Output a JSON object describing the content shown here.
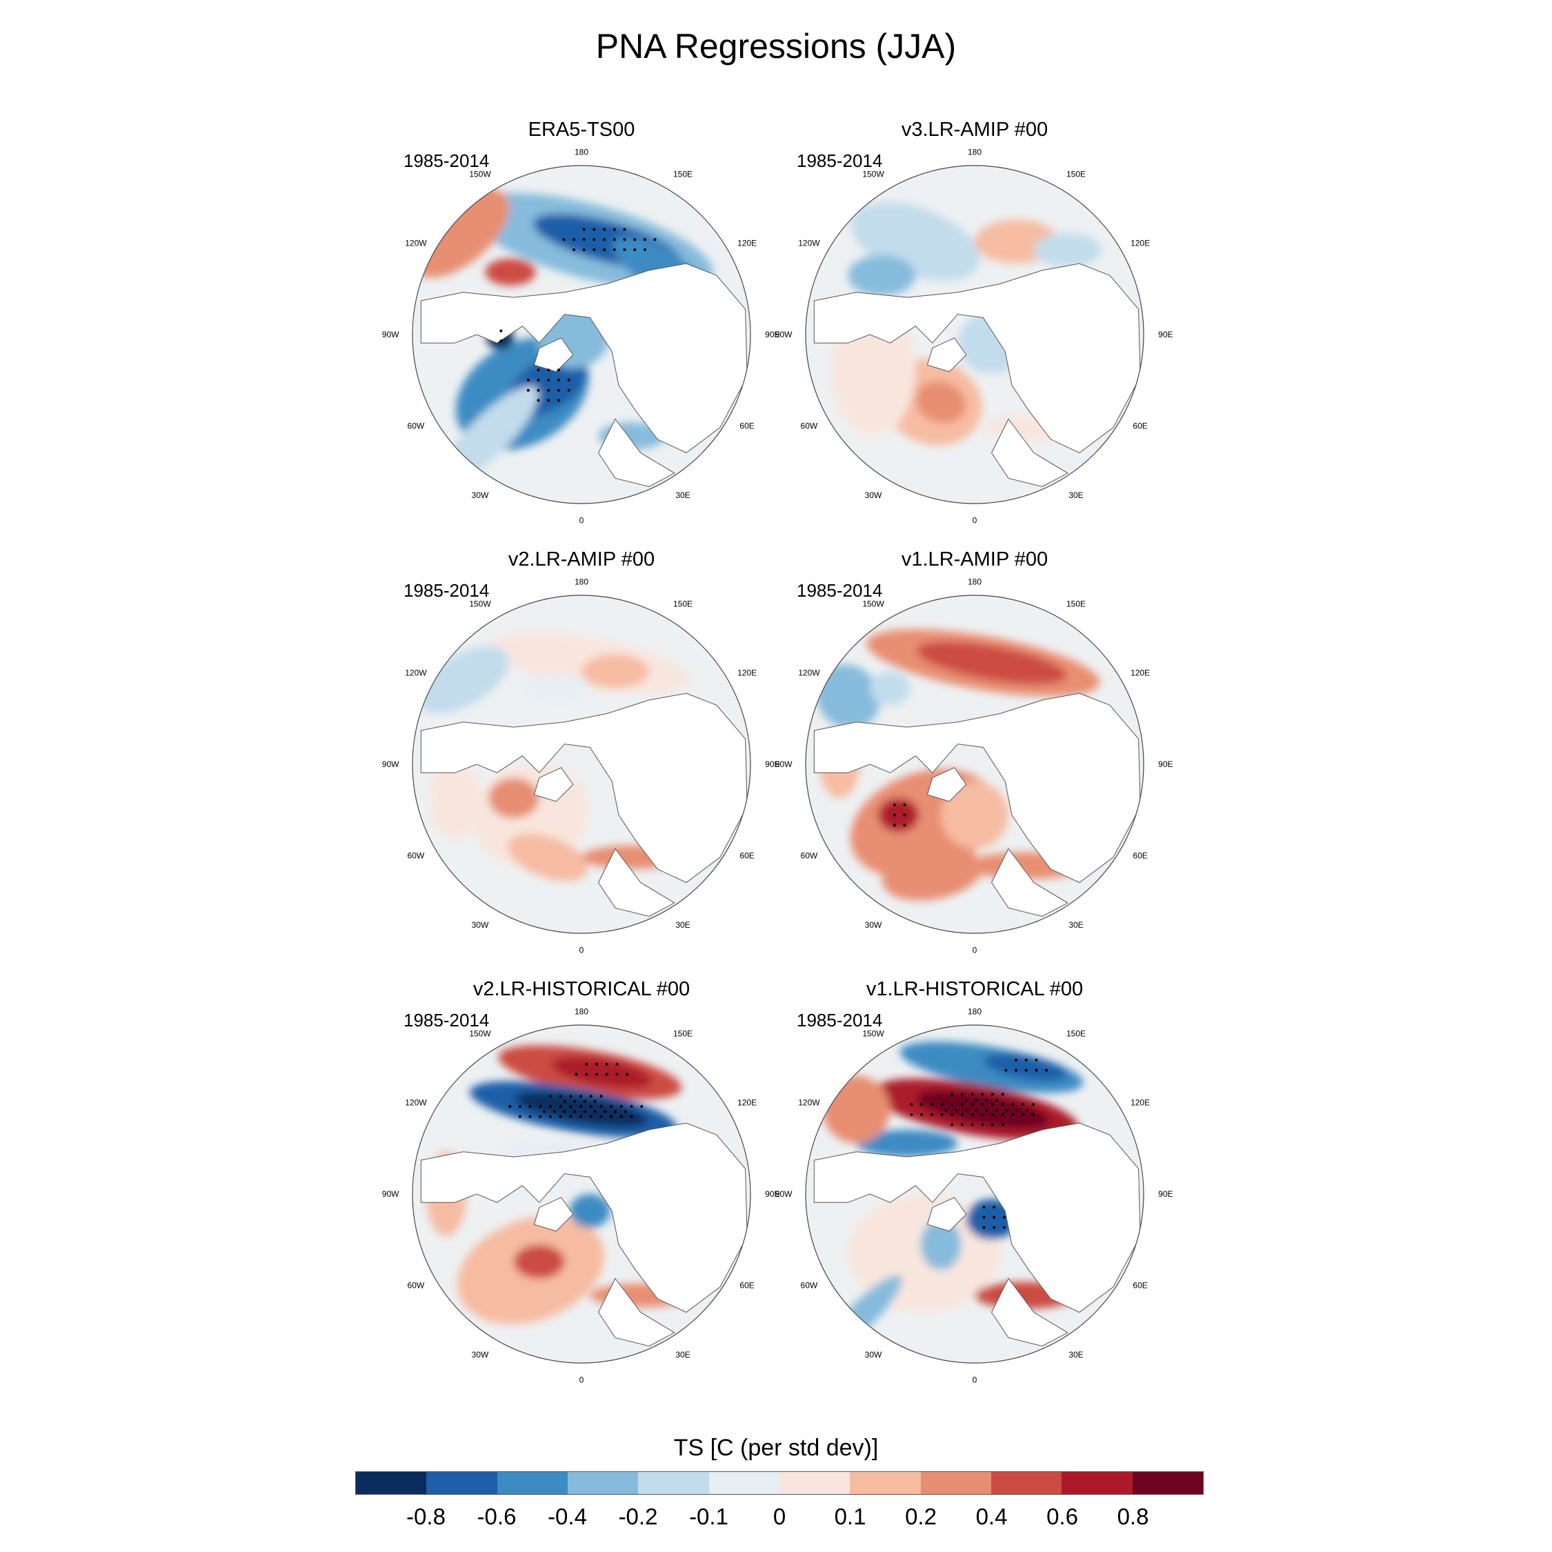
{
  "title": "PNA Regressions (JJA)",
  "panels": [
    {
      "title": "ERA5-TS00",
      "period": "1985-2014",
      "pattern": "era5"
    },
    {
      "title": "v3.LR-AMIP  #00",
      "period": "1985-2014",
      "pattern": "v3amip"
    },
    {
      "title": "v2.LR-AMIP  #00",
      "period": "1985-2014",
      "pattern": "v2amip"
    },
    {
      "title": "v1.LR-AMIP  #00",
      "period": "1985-2014",
      "pattern": "v1amip"
    },
    {
      "title": "v2.LR-HISTORICAL  #00",
      "period": "1985-2014",
      "pattern": "v2hist"
    },
    {
      "title": "v1.LR-HISTORICAL  #00",
      "period": "1985-2014",
      "pattern": "v1hist"
    }
  ],
  "longitude_labels": [
    "180",
    "150E",
    "120E",
    "90E",
    "60E",
    "30E",
    "0",
    "30W",
    "60W",
    "90W",
    "120W",
    "150W"
  ],
  "colorbar": {
    "title": "TS [C (per std dev)]",
    "labels": [
      "-0.8",
      "-0.6",
      "-0.4",
      "-0.2",
      "-0.1",
      "0",
      "0.1",
      "0.2",
      "0.4",
      "0.6",
      "0.8"
    ],
    "colors": [
      "#0a2d5e",
      "#1f5ea8",
      "#3c8bc3",
      "#86bbdc",
      "#c2dcec",
      "#e7eef4",
      "#f8e6de",
      "#f6bca2",
      "#e88e72",
      "#cc4c43",
      "#ac1a2a",
      "#6e0420"
    ]
  }
}
